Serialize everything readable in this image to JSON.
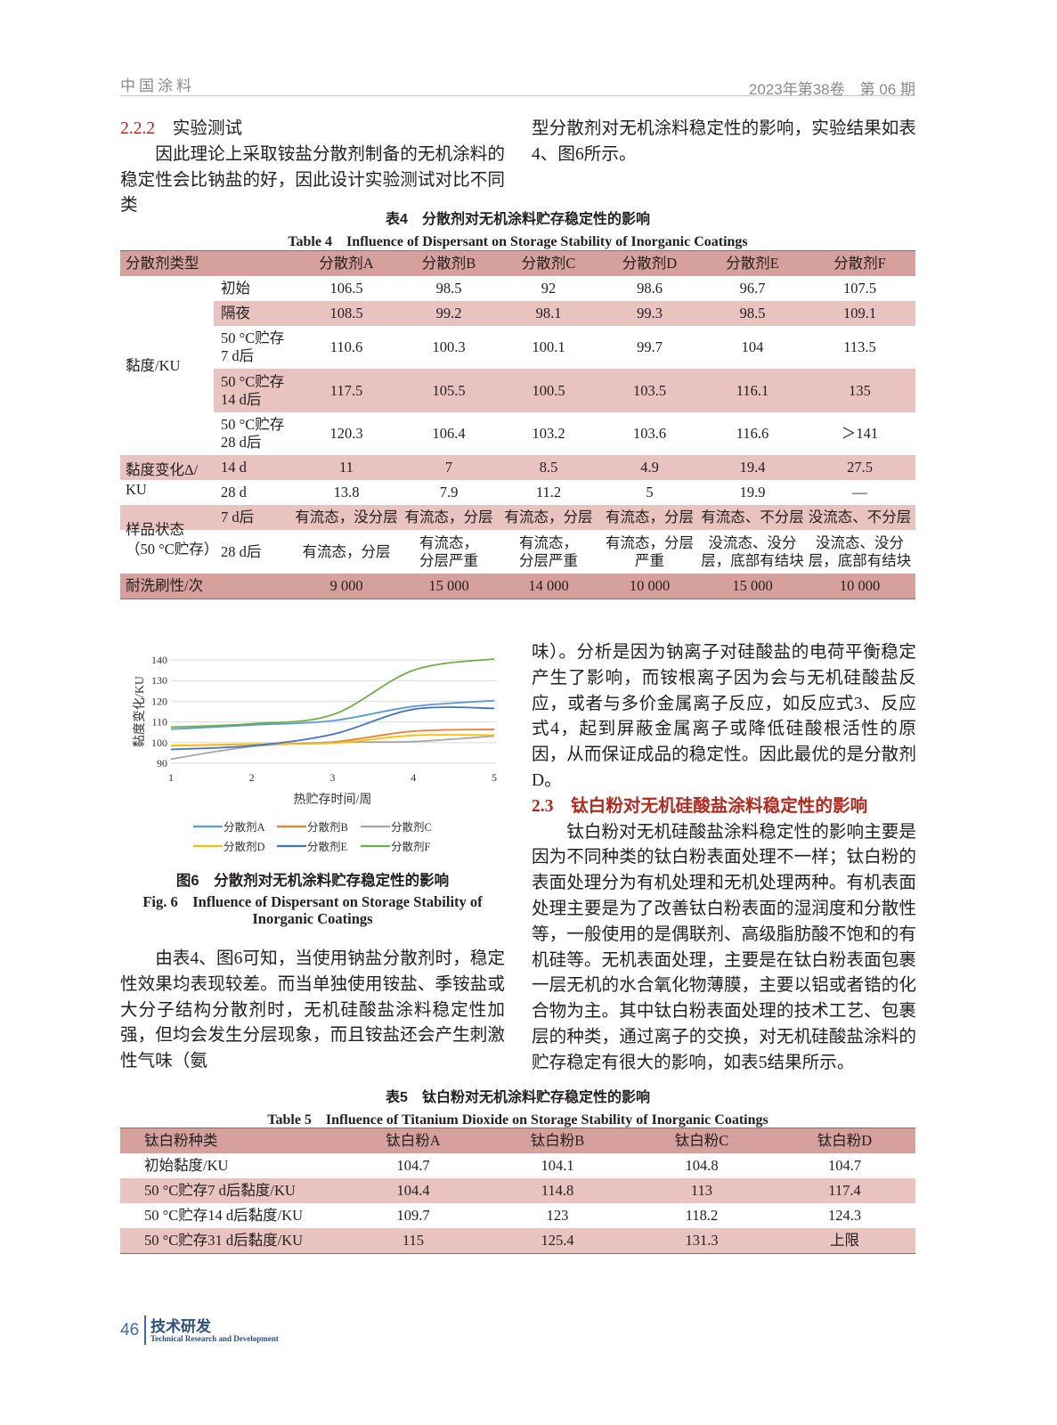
{
  "header": {
    "journal": "中国涂料",
    "issue": "2023年第38卷　第 06 期"
  },
  "section_222": {
    "number": "2.2.2",
    "title": "实验测试",
    "para_left": "因此理论上采取铵盐分散剂制备的无机涂料的稳定性会比钠盐的好，因此设计实验测试对比不同类",
    "para_right": "型分散剂对无机涂料稳定性的影响，实验结果如表4、图6所示。"
  },
  "table4": {
    "title_cn": "表4　分散剂对无机涂料贮存稳定性的影响",
    "title_en": "Table 4　Influence of Dispersant on Storage Stability of Inorganic Coatings",
    "header": [
      "分散剂类型",
      "",
      "分散剂A",
      "分散剂B",
      "分散剂C",
      "分散剂D",
      "分散剂E",
      "分散剂F"
    ],
    "groups": [
      {
        "label": "黏度/KU",
        "rows": [
          {
            "sub": "初始",
            "values": [
              "106.5",
              "98.5",
              "92",
              "98.6",
              "96.7",
              "107.5"
            ]
          },
          {
            "sub": "隔夜",
            "values": [
              "108.5",
              "99.2",
              "98.1",
              "99.3",
              "98.5",
              "109.1"
            ]
          },
          {
            "sub": "50 °C贮存\n7 d后",
            "values": [
              "110.6",
              "100.3",
              "100.1",
              "99.7",
              "104",
              "113.5"
            ]
          },
          {
            "sub": "50 °C贮存\n14 d后",
            "values": [
              "117.5",
              "105.5",
              "100.5",
              "103.5",
              "116.1",
              "135"
            ]
          },
          {
            "sub": "50 °C贮存\n28 d后",
            "values": [
              "120.3",
              "106.4",
              "103.2",
              "103.6",
              "116.6",
              "＞141"
            ]
          }
        ]
      },
      {
        "label": "黏度变化Δ/\nKU",
        "rows": [
          {
            "sub": "14 d",
            "values": [
              "11",
              "7",
              "8.5",
              "4.9",
              "19.4",
              "27.5"
            ]
          },
          {
            "sub": "28 d",
            "values": [
              "13.8",
              "7.9",
              "11.2",
              "5",
              "19.9",
              "—"
            ]
          }
        ]
      },
      {
        "label": "样品状态\n（50 °C贮存）",
        "rows": [
          {
            "sub": "7 d后",
            "values": [
              "有流态，没分层",
              "有流态，分层",
              "有流态，分层",
              "有流态，分层",
              "有流态、不分层",
              "没流态、不分层"
            ]
          },
          {
            "sub": "28 d后",
            "values": [
              "有流态，分层",
              "有流态，\n分层严重",
              "有流态，\n分层严重",
              "有流态，分层\n严重",
              "没流态、没分\n层，底部有结块",
              "没流态、没分\n层，底部有结块"
            ]
          }
        ]
      },
      {
        "label": "耐洗刷性/次",
        "rows": [
          {
            "sub": "",
            "values": [
              "9 000",
              "15 000",
              "14 000",
              "10 000",
              "15 000",
              "10 000"
            ]
          }
        ]
      }
    ]
  },
  "chart_data": {
    "type": "line",
    "title": "",
    "xlabel": "热贮存时间/周",
    "ylabel": "黏度变化/KU",
    "x": [
      1,
      2,
      3,
      4,
      5
    ],
    "xticks": [
      "1",
      "2",
      "3",
      "4",
      "5"
    ],
    "yticks": [
      "90",
      "100",
      "110",
      "120",
      "130",
      "140"
    ],
    "ylim": [
      90,
      140
    ],
    "grid": true,
    "legend": "bottom",
    "series": [
      {
        "name": "分散剂A",
        "color": "#5b9bd5",
        "values": [
          106.5,
          108.5,
          110.6,
          117.5,
          120.3
        ]
      },
      {
        "name": "分散剂B",
        "color": "#ed7d31",
        "values": [
          98.5,
          99.2,
          100.3,
          105.5,
          106.4
        ]
      },
      {
        "name": "分散剂C",
        "color": "#a5a5a5",
        "values": [
          92,
          98.1,
          100.1,
          100.5,
          103.2
        ]
      },
      {
        "name": "分散剂D",
        "color": "#ffc000",
        "values": [
          98.6,
          99.3,
          99.7,
          103.5,
          103.6
        ]
      },
      {
        "name": "分散剂E",
        "color": "#4472c4",
        "values": [
          96.7,
          98.5,
          104,
          116.1,
          116.6
        ]
      },
      {
        "name": "分散剂F",
        "color": "#70ad47",
        "values": [
          107.5,
          109.1,
          113.5,
          135,
          141
        ]
      }
    ]
  },
  "figure6": {
    "caption_cn": "图6　分散剂对无机涂料贮存稳定性的影响",
    "caption_en_1": "Fig. 6　Influence of Dispersant on Storage Stability of",
    "caption_en_2": "Inorganic Coatings"
  },
  "left_para2": "由表4、图6可知，当使用钠盐分散剂时，稳定性效果均表现较差。而当单独使用铵盐、季铵盐或大分子结构分散剂时，无机硅酸盐涂料稳定性加强，但均会发生分层现象，而且铵盐还会产生刺激性气味（氨",
  "right_para1": "味）。分析是因为钠离子对硅酸盐的电荷平衡稳定产生了影响，而铵根离子因为会与无机硅酸盐反应，或者与多价金属离子反应，如反应式3、反应式4，起到屏蔽金属离子或降低硅酸根活性的原因，从而保证成品的稳定性。因此最优的是分散剂D。",
  "section_23": {
    "number": "2.3",
    "title": "钛白粉对无机硅酸盐涂料稳定性的影响",
    "para": "钛白粉对无机硅酸盐涂料稳定性的影响主要是因为不同种类的钛白粉表面处理不一样；钛白粉的表面处理分为有机处理和无机处理两种。有机表面处理主要是为了改善钛白粉表面的湿润度和分散性等，一般使用的是偶联剂、高级脂肪酸不饱和的有机硅等。无机表面处理，主要是在钛白粉表面包裹一层无机的水合氧化物薄膜，主要以铝或者锆的化合物为主。其中钛白粉表面处理的技术工艺、包裹层的种类，通过离子的交换，对无机硅酸盐涂料的贮存稳定有很大的影响，如表5结果所示。"
  },
  "table5": {
    "title_cn": "表5　钛白粉对无机涂料贮存稳定性的影响",
    "title_en": "Table 5　Influence of Titanium Dioxide on Storage Stability of Inorganic Coatings",
    "header": [
      "钛白粉种类",
      "钛白粉A",
      "钛白粉B",
      "钛白粉C",
      "钛白粉D"
    ],
    "rows": [
      [
        "初始黏度/KU",
        "104.7",
        "104.1",
        "104.8",
        "104.7"
      ],
      [
        "50 °C贮存7 d后黏度/KU",
        "104.4",
        "114.8",
        "113",
        "117.4"
      ],
      [
        "50 °C贮存14 d后黏度/KU",
        "109.7",
        "123",
        "118.2",
        "124.3"
      ],
      [
        "50 °C贮存31 d后黏度/KU",
        "115",
        "125.4",
        "131.3",
        "上限"
      ]
    ]
  },
  "footer": {
    "page": "46",
    "section_cn": "技术研发",
    "section_en": "Technical Research and Development"
  }
}
